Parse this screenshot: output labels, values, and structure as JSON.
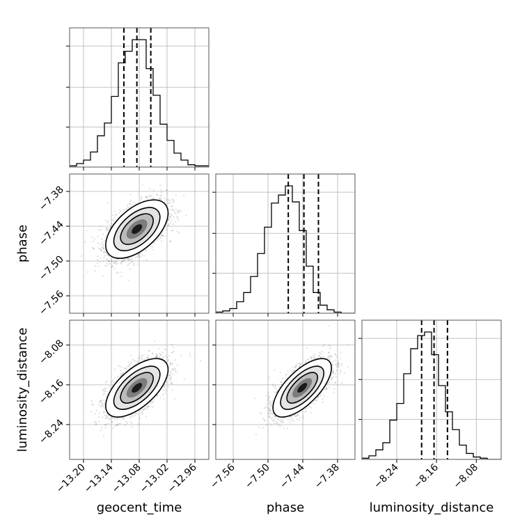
{
  "chart_data": {
    "type": "corner",
    "parameters": [
      "geocent_time",
      "phase",
      "luminosity_distance"
    ],
    "labels": {
      "geocent_time": "geocent_time",
      "phase": "phase",
      "luminosity_distance": "luminosity_distance"
    },
    "ranges": {
      "geocent_time": [
        -13.23,
        -12.93
      ],
      "phase": [
        -7.59,
        -7.35
      ],
      "luminosity_distance": [
        -8.31,
        -8.03
      ]
    },
    "ticks": {
      "geocent_time": [
        -13.2,
        -13.14,
        -13.08,
        -13.02,
        -12.96
      ],
      "phase": [
        -7.56,
        -7.5,
        -7.44,
        -7.38
      ],
      "luminosity_distance": [
        -8.24,
        -8.16,
        -8.08
      ]
    },
    "tick_labels": {
      "geocent_time": [
        "−13.20",
        "−13.14",
        "−13.08",
        "−13.02",
        "−12.96"
      ],
      "phase": [
        "−7.56",
        "−7.50",
        "−7.44",
        "−7.38"
      ],
      "luminosity_distance": [
        "−8.24",
        "−8.16",
        "−8.08"
      ]
    },
    "histograms": {
      "geocent_time": {
        "bin_edges": [
          -13.23,
          -13.215,
          -13.2,
          -13.185,
          -13.17,
          -13.155,
          -13.14,
          -13.125,
          -13.11,
          -13.095,
          -13.08,
          -13.065,
          -13.05,
          -13.035,
          -13.02,
          -13.005,
          -12.99,
          -12.975,
          -12.96,
          -12.945,
          -12.93
        ],
        "counts": [
          1,
          3,
          6,
          13,
          27,
          38,
          61,
          90,
          100,
          110,
          110,
          85,
          62,
          37,
          23,
          12,
          6,
          2,
          1,
          1
        ],
        "quantiles": [
          -13.113,
          -13.085,
          -13.055
        ]
      },
      "phase": {
        "bin_edges": [
          -7.59,
          -7.578,
          -7.566,
          -7.554,
          -7.542,
          -7.53,
          -7.518,
          -7.506,
          -7.494,
          -7.482,
          -7.47,
          -7.458,
          -7.446,
          -7.434,
          -7.422,
          -7.41,
          -7.398,
          -7.386,
          -7.374,
          -7.362,
          -7.35
        ],
        "counts": [
          1,
          2,
          4,
          10,
          18,
          32,
          52,
          75,
          96,
          103,
          111,
          97,
          72,
          41,
          18,
          7,
          3,
          1,
          0,
          0
        ],
        "quantiles": [
          -7.465,
          -7.438,
          -7.413
        ]
      },
      "luminosity_distance": {
        "bin_edges": [
          -8.31,
          -8.296,
          -8.282,
          -8.268,
          -8.254,
          -8.24,
          -8.226,
          -8.212,
          -8.198,
          -8.184,
          -8.17,
          -8.156,
          -8.142,
          -8.128,
          -8.114,
          -8.1,
          -8.086,
          -8.072,
          -8.058,
          -8.044,
          -8.03
        ],
        "counts": [
          1,
          3,
          8,
          14,
          33,
          47,
          72,
          93,
          104,
          107,
          88,
          62,
          40,
          25,
          12,
          5,
          2,
          1,
          0,
          0
        ],
        "quantiles": [
          -8.19,
          -8.165,
          -8.138
        ]
      }
    },
    "pairs": [
      {
        "x": "geocent_time",
        "y": "phase",
        "mean": [
          -13.085,
          -7.445
        ],
        "sd": [
          0.032,
          0.024
        ],
        "corr": 0.55
      },
      {
        "x": "geocent_time",
        "y": "luminosity_distance",
        "mean": [
          -13.085,
          -8.166
        ],
        "sd": [
          0.032,
          0.028
        ],
        "corr": 0.62
      },
      {
        "x": "phase",
        "y": "luminosity_distance",
        "mean": [
          -7.441,
          -8.166
        ],
        "sd": [
          0.024,
          0.028
        ],
        "corr": 0.68
      }
    ],
    "grid": true
  }
}
